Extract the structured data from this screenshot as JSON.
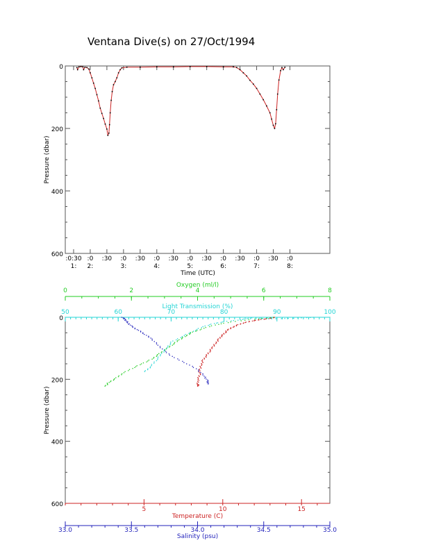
{
  "chart_data": [
    {
      "type": "line",
      "title": "Ventana Dive(s) on 27/Oct/1994",
      "xlabel": "Time (UTC)",
      "ylabel": "Pressure (dbar)",
      "xlim_hours": [
        0.25,
        8.2
      ],
      "ylim": [
        600,
        0
      ],
      "y_ticks": [
        0,
        200,
        400,
        600
      ],
      "x_ticks": [
        {
          "t": 0.5,
          "top": ":0:30",
          "bottom": "1:"
        },
        {
          "t": 1.0,
          "top": ":0",
          "bottom": "2:"
        },
        {
          "t": 1.5,
          "top": ":30",
          "bottom": ""
        },
        {
          "t": 2.0,
          "top": ":0",
          "bottom": "3:"
        },
        {
          "t": 2.5,
          "top": ":30",
          "bottom": ""
        },
        {
          "t": 3.0,
          "top": ":0",
          "bottom": "4:"
        },
        {
          "t": 3.5,
          "top": ":30",
          "bottom": ""
        },
        {
          "t": 4.0,
          "top": ":0",
          "bottom": "5:"
        },
        {
          "t": 4.5,
          "top": ":30",
          "bottom": ""
        },
        {
          "t": 5.0,
          "top": ":0",
          "bottom": "6:"
        },
        {
          "t": 5.5,
          "top": ":30",
          "bottom": ""
        },
        {
          "t": 6.0,
          "top": ":0",
          "bottom": "7:"
        },
        {
          "t": 6.5,
          "top": ":30",
          "bottom": ""
        },
        {
          "t": 7.0,
          "top": ":0",
          "bottom": "8:"
        }
      ],
      "series": [
        {
          "color": "#cc2222",
          "points": [
            [
              0.6,
              5
            ],
            [
              0.62,
              12
            ],
            [
              0.66,
              3
            ],
            [
              0.72,
              2
            ],
            [
              0.78,
              3
            ],
            [
              0.8,
              12
            ],
            [
              0.84,
              4
            ],
            [
              0.9,
              5
            ],
            [
              0.96,
              10
            ],
            [
              1.0,
              22
            ],
            [
              1.05,
              38
            ],
            [
              1.1,
              55
            ],
            [
              1.15,
              72
            ],
            [
              1.2,
              92
            ],
            [
              1.25,
              112
            ],
            [
              1.3,
              135
            ],
            [
              1.35,
              152
            ],
            [
              1.4,
              168
            ],
            [
              1.45,
              186
            ],
            [
              1.5,
              202
            ],
            [
              1.53,
              222
            ],
            [
              1.56,
              215
            ],
            [
              1.58,
              188
            ],
            [
              1.6,
              150
            ],
            [
              1.63,
              110
            ],
            [
              1.66,
              82
            ],
            [
              1.7,
              60
            ],
            [
              1.75,
              50
            ],
            [
              1.8,
              38
            ],
            [
              1.85,
              22
            ],
            [
              1.9,
              12
            ],
            [
              1.95,
              6
            ],
            [
              2.1,
              4
            ],
            [
              2.5,
              4
            ],
            [
              3.0,
              3
            ],
            [
              3.5,
              3
            ],
            [
              4.0,
              2
            ],
            [
              4.5,
              2
            ],
            [
              5.0,
              3
            ],
            [
              5.3,
              3
            ],
            [
              5.4,
              5
            ],
            [
              5.5,
              12
            ],
            [
              5.6,
              22
            ],
            [
              5.7,
              32
            ],
            [
              5.8,
              46
            ],
            [
              5.9,
              58
            ],
            [
              6.0,
              72
            ],
            [
              6.1,
              90
            ],
            [
              6.2,
              108
            ],
            [
              6.3,
              128
            ],
            [
              6.4,
              150
            ],
            [
              6.45,
              170
            ],
            [
              6.5,
              190
            ],
            [
              6.54,
              200
            ],
            [
              6.57,
              185
            ],
            [
              6.6,
              140
            ],
            [
              6.63,
              90
            ],
            [
              6.67,
              45
            ],
            [
              6.72,
              15
            ],
            [
              6.76,
              5
            ],
            [
              6.8,
              12
            ],
            [
              6.85,
              4
            ]
          ]
        }
      ]
    },
    {
      "type": "scatter",
      "ylabel": "Pressure (dbar)",
      "ylim": [
        600,
        0
      ],
      "y_ticks": [
        0,
        200,
        400,
        600
      ],
      "axes": [
        {
          "key": "oxygen",
          "label": "Oxygen (ml/l)",
          "color": "#22cc22",
          "position": "top-1",
          "range": [
            0,
            8
          ],
          "ticks": [
            0,
            2,
            4,
            6,
            8
          ],
          "tick_labels": [
            "0",
            "2",
            "4",
            "6",
            "8"
          ]
        },
        {
          "key": "light",
          "label": "Light Transmission (%)",
          "color": "#22d4d4",
          "position": "top-2",
          "range": [
            50,
            100
          ],
          "ticks": [
            50,
            60,
            70,
            80,
            90,
            100
          ],
          "tick_labels": [
            "50",
            "60",
            "70",
            "80",
            "90",
            "100"
          ]
        },
        {
          "key": "temperature",
          "label": "Temperature (C)",
          "color": "#cc2222",
          "position": "bottom-1",
          "range": [
            0,
            16.8
          ],
          "ticks": [
            5,
            10,
            15
          ],
          "tick_labels": [
            "5",
            "10",
            "15"
          ]
        },
        {
          "key": "salinity",
          "label": "Salinity (psu)",
          "color": "#2222bb",
          "position": "bottom-2",
          "range": [
            33.0,
            35.0
          ],
          "ticks": [
            33.0,
            33.5,
            34.0,
            34.5,
            35.0
          ],
          "tick_labels": [
            "33.0",
            "33.5",
            "34.0",
            "34.5",
            "35.0"
          ]
        }
      ],
      "series": [
        {
          "axis": "temperature",
          "color": "#cc2222",
          "points": [
            [
              13.3,
              0
            ],
            [
              12.9,
              4
            ],
            [
              12.3,
              8
            ],
            [
              11.8,
              12
            ],
            [
              11.3,
              18
            ],
            [
              10.9,
              25
            ],
            [
              10.6,
              32
            ],
            [
              10.3,
              40
            ],
            [
              10.1,
              50
            ],
            [
              9.9,
              60
            ],
            [
              9.7,
              72
            ],
            [
              9.5,
              85
            ],
            [
              9.3,
              98
            ],
            [
              9.1,
              112
            ],
            [
              8.9,
              126
            ],
            [
              8.7,
              140
            ],
            [
              8.6,
              155
            ],
            [
              8.5,
              170
            ],
            [
              8.5,
              185
            ],
            [
              8.4,
              200
            ],
            [
              8.4,
              215
            ],
            [
              8.4,
              222
            ]
          ]
        },
        {
          "axis": "salinity",
          "color": "#2222bb",
          "points": [
            [
              33.43,
              0
            ],
            [
              33.45,
              8
            ],
            [
              33.47,
              18
            ],
            [
              33.5,
              30
            ],
            [
              33.55,
              42
            ],
            [
              33.6,
              55
            ],
            [
              33.65,
              70
            ],
            [
              33.7,
              90
            ],
            [
              33.75,
              110
            ],
            [
              33.82,
              130
            ],
            [
              33.92,
              150
            ],
            [
              34.0,
              170
            ],
            [
              34.05,
              190
            ],
            [
              34.07,
              205
            ],
            [
              34.08,
              215
            ]
          ]
        },
        {
          "axis": "oxygen",
          "color": "#22cc22",
          "points": [
            [
              6.3,
              0
            ],
            [
              5.7,
              6
            ],
            [
              5.0,
              15
            ],
            [
              4.5,
              25
            ],
            [
              4.1,
              38
            ],
            [
              3.8,
              50
            ],
            [
              3.6,
              62
            ],
            [
              3.4,
              75
            ],
            [
              3.2,
              90
            ],
            [
              3.0,
              105
            ],
            [
              2.8,
              120
            ],
            [
              2.6,
              135
            ],
            [
              2.3,
              150
            ],
            [
              2.0,
              165
            ],
            [
              1.7,
              182
            ],
            [
              1.5,
              198
            ],
            [
              1.3,
              210
            ],
            [
              1.2,
              222
            ]
          ]
        },
        {
          "axis": "light",
          "color": "#22d4d4",
          "points": [
            [
              97,
              0
            ],
            [
              93,
              3
            ],
            [
              89,
              5
            ],
            [
              85,
              2
            ],
            [
              83,
              8
            ],
            [
              80,
              14
            ],
            [
              78,
              20
            ],
            [
              76,
              30
            ],
            [
              74,
              45
            ],
            [
              72,
              62
            ],
            [
              70,
              80
            ],
            [
              69,
              100
            ],
            [
              68,
              120
            ],
            [
              67,
              140
            ],
            [
              66,
              160
            ],
            [
              65,
              175
            ]
          ]
        }
      ]
    }
  ]
}
